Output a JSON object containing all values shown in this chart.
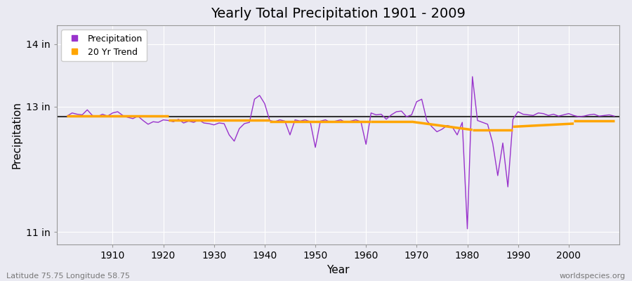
{
  "title": "Yearly Total Precipitation 1901 - 2009",
  "xlabel": "Year",
  "ylabel": "Precipitation",
  "lat_lon_label": "Latitude 75.75 Longitude 58.75",
  "source_label": "worldspecies.org",
  "precip_color": "#9933CC",
  "trend_color": "#FFA500",
  "mean_color": "#333333",
  "bg_color": "#EAEAF2",
  "plot_bg": "#EAEAF2",
  "grid_color": "#FFFFFF",
  "ylim": [
    10.8,
    14.3
  ],
  "yticks": [
    11,
    13,
    14
  ],
  "ytick_labels": [
    "11 in",
    "13 in",
    "14 in"
  ],
  "xlim": [
    1899,
    2010
  ],
  "xticks": [
    1910,
    1920,
    1930,
    1940,
    1950,
    1960,
    1970,
    1980,
    1990,
    2000
  ],
  "years": [
    1901,
    1902,
    1903,
    1904,
    1905,
    1906,
    1907,
    1908,
    1909,
    1910,
    1911,
    1912,
    1913,
    1914,
    1915,
    1916,
    1917,
    1918,
    1919,
    1920,
    1921,
    1922,
    1923,
    1924,
    1925,
    1926,
    1927,
    1928,
    1929,
    1930,
    1931,
    1932,
    1933,
    1934,
    1935,
    1936,
    1937,
    1938,
    1939,
    1940,
    1941,
    1942,
    1943,
    1944,
    1945,
    1946,
    1947,
    1948,
    1949,
    1950,
    1951,
    1952,
    1953,
    1954,
    1955,
    1956,
    1957,
    1958,
    1959,
    1960,
    1961,
    1962,
    1963,
    1964,
    1965,
    1966,
    1967,
    1968,
    1969,
    1970,
    1971,
    1972,
    1973,
    1974,
    1975,
    1976,
    1977,
    1978,
    1979,
    1980,
    1981,
    1982,
    1983,
    1984,
    1985,
    1986,
    1987,
    1988,
    1989,
    1990,
    1991,
    1992,
    1993,
    1994,
    1995,
    1996,
    1997,
    1998,
    1999,
    2000,
    2001,
    2002,
    2003,
    2004,
    2005,
    2006,
    2007,
    2008,
    2009
  ],
  "precip": [
    12.85,
    12.9,
    12.88,
    12.87,
    12.95,
    12.86,
    12.84,
    12.88,
    12.85,
    12.9,
    12.92,
    12.86,
    12.83,
    12.81,
    12.85,
    12.78,
    12.72,
    12.76,
    12.75,
    12.79,
    12.78,
    12.76,
    12.8,
    12.74,
    12.77,
    12.75,
    12.79,
    12.74,
    12.73,
    12.71,
    12.74,
    12.73,
    12.55,
    12.45,
    12.65,
    12.73,
    12.75,
    13.12,
    13.18,
    13.05,
    12.78,
    12.76,
    12.79,
    12.77,
    12.55,
    12.79,
    12.77,
    12.79,
    12.76,
    12.35,
    12.77,
    12.79,
    12.75,
    12.77,
    12.79,
    12.75,
    12.77,
    12.79,
    12.76,
    12.4,
    12.9,
    12.87,
    12.88,
    12.8,
    12.87,
    12.92,
    12.93,
    12.84,
    12.87,
    13.08,
    13.12,
    12.78,
    12.68,
    12.6,
    12.64,
    12.7,
    12.68,
    12.55,
    12.75,
    11.05,
    13.48,
    12.78,
    12.75,
    12.72,
    12.42,
    11.9,
    12.42,
    11.72,
    12.8,
    12.92,
    12.88,
    12.87,
    12.86,
    12.9,
    12.89,
    12.86,
    12.88,
    12.85,
    12.87,
    12.89,
    12.86,
    12.84,
    12.85,
    12.87,
    12.88,
    12.85,
    12.86,
    12.87,
    12.85
  ],
  "trend_segments": [
    {
      "x": [
        1901,
        1921
      ],
      "y": [
        12.85,
        12.85
      ]
    },
    {
      "x": [
        1921,
        1941
      ],
      "y": [
        12.78,
        12.78
      ]
    },
    {
      "x": [
        1941,
        1961
      ],
      "y": [
        12.76,
        12.76
      ]
    },
    {
      "x": [
        1961,
        1969
      ],
      "y": [
        12.76,
        12.76
      ]
    },
    {
      "x": [
        1969,
        1981
      ],
      "y": [
        12.76,
        12.63
      ]
    },
    {
      "x": [
        1981,
        1989
      ],
      "y": [
        12.63,
        12.63
      ]
    },
    {
      "x": [
        1989,
        2001
      ],
      "y": [
        12.68,
        12.73
      ]
    },
    {
      "x": [
        2001,
        2009
      ],
      "y": [
        12.77,
        12.77
      ]
    }
  ],
  "mean_value": 12.84,
  "title_fontsize": 14,
  "axis_label_fontsize": 11,
  "tick_fontsize": 10,
  "legend_fontsize": 9
}
